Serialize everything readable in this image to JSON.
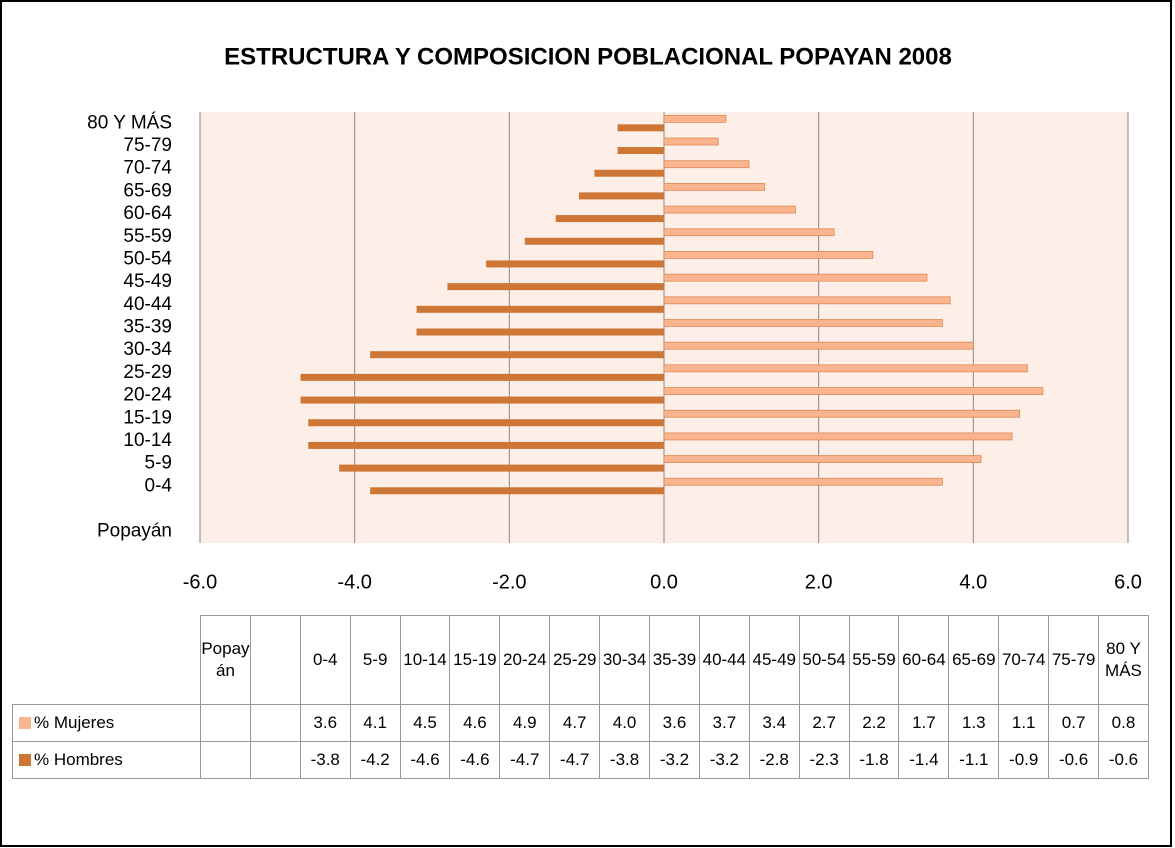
{
  "chart_data": {
    "type": "bar",
    "orientation": "horizontal",
    "title": "ESTRUCTURA  Y COMPOSICION POBLACIONAL  POPAYAN   2008",
    "categories": [
      "Popayán",
      null,
      "0-4",
      "5-9",
      "10-14",
      "15-19",
      "20-24",
      "25-29",
      "30-34",
      "35-39",
      "40-44",
      "45-49",
      "50-54",
      "55-59",
      "60-64",
      "65-69",
      "70-74",
      "75-79",
      "80 Y MÁS"
    ],
    "series": [
      {
        "name": "% Mujeres",
        "color": "#fab58e",
        "values": [
          null,
          null,
          3.6,
          4.1,
          4.5,
          4.6,
          4.9,
          4.7,
          4.0,
          3.6,
          3.7,
          3.4,
          2.7,
          2.2,
          1.7,
          1.3,
          1.1,
          0.7,
          0.8
        ],
        "value_labels": [
          null,
          null,
          "3.6",
          "4.1",
          "4.5",
          "4.6",
          "4.9",
          "4.7",
          "4.0",
          "3.6",
          "3.7",
          "3.4",
          "2.7",
          "2.2",
          "1.7",
          "1.3",
          "1.1",
          "0.7",
          "0.8"
        ]
      },
      {
        "name": "% Hombres",
        "color": "#cd7636",
        "values": [
          null,
          null,
          -3.8,
          -4.2,
          -4.6,
          -4.6,
          -4.7,
          -4.7,
          -3.8,
          -3.2,
          -3.2,
          -2.8,
          -2.3,
          -1.8,
          -1.4,
          -1.1,
          -0.9,
          -0.6,
          -0.6
        ],
        "value_labels": [
          null,
          null,
          "-3.8",
          "-4.2",
          "-4.6",
          "-4.6",
          "-4.7",
          "-4.7",
          "-3.8",
          "-3.2",
          "-3.2",
          "-2.8",
          "-2.3",
          "-1.8",
          "-1.4",
          "-1.1",
          "-0.9",
          "-0.6",
          "-0.6"
        ]
      }
    ],
    "xlim": [
      -6,
      6
    ],
    "xticks": [
      {
        "value": -6,
        "label": "-6.0"
      },
      {
        "value": -4,
        "label": "-4.0"
      },
      {
        "value": -2,
        "label": "-2.0"
      },
      {
        "value": 0,
        "label": "0.0"
      },
      {
        "value": 2,
        "label": "2.0"
      },
      {
        "value": 4,
        "label": "4.0"
      },
      {
        "value": 6,
        "label": "6.0"
      }
    ],
    "grid": true,
    "data_table": true
  }
}
